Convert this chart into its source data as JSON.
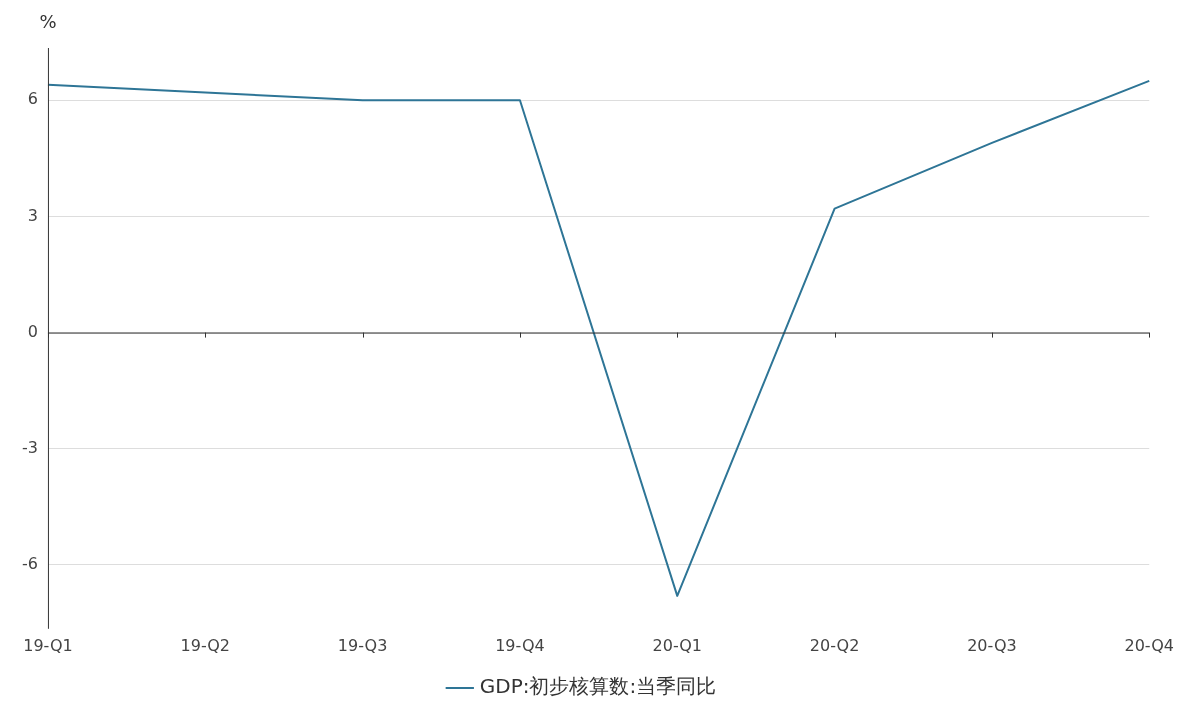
{
  "chart_data": {
    "type": "line",
    "ylabel": "%",
    "categories": [
      "19-Q1",
      "19-Q2",
      "19-Q3",
      "19-Q4",
      "20-Q1",
      "20-Q2",
      "20-Q3",
      "20-Q4"
    ],
    "series": [
      {
        "name": "GDP:初步核算数:当季同比",
        "color": "#2e7596",
        "values": [
          6.4,
          6.2,
          6.0,
          6.0,
          -6.8,
          3.2,
          4.9,
          6.5
        ]
      }
    ],
    "ylim": [
      -7.65,
      7.35
    ],
    "yticks": [
      -6,
      -3,
      0,
      3,
      6
    ],
    "grid": "y",
    "legend": "bottom",
    "marker": "none",
    "line_style": "solid"
  }
}
